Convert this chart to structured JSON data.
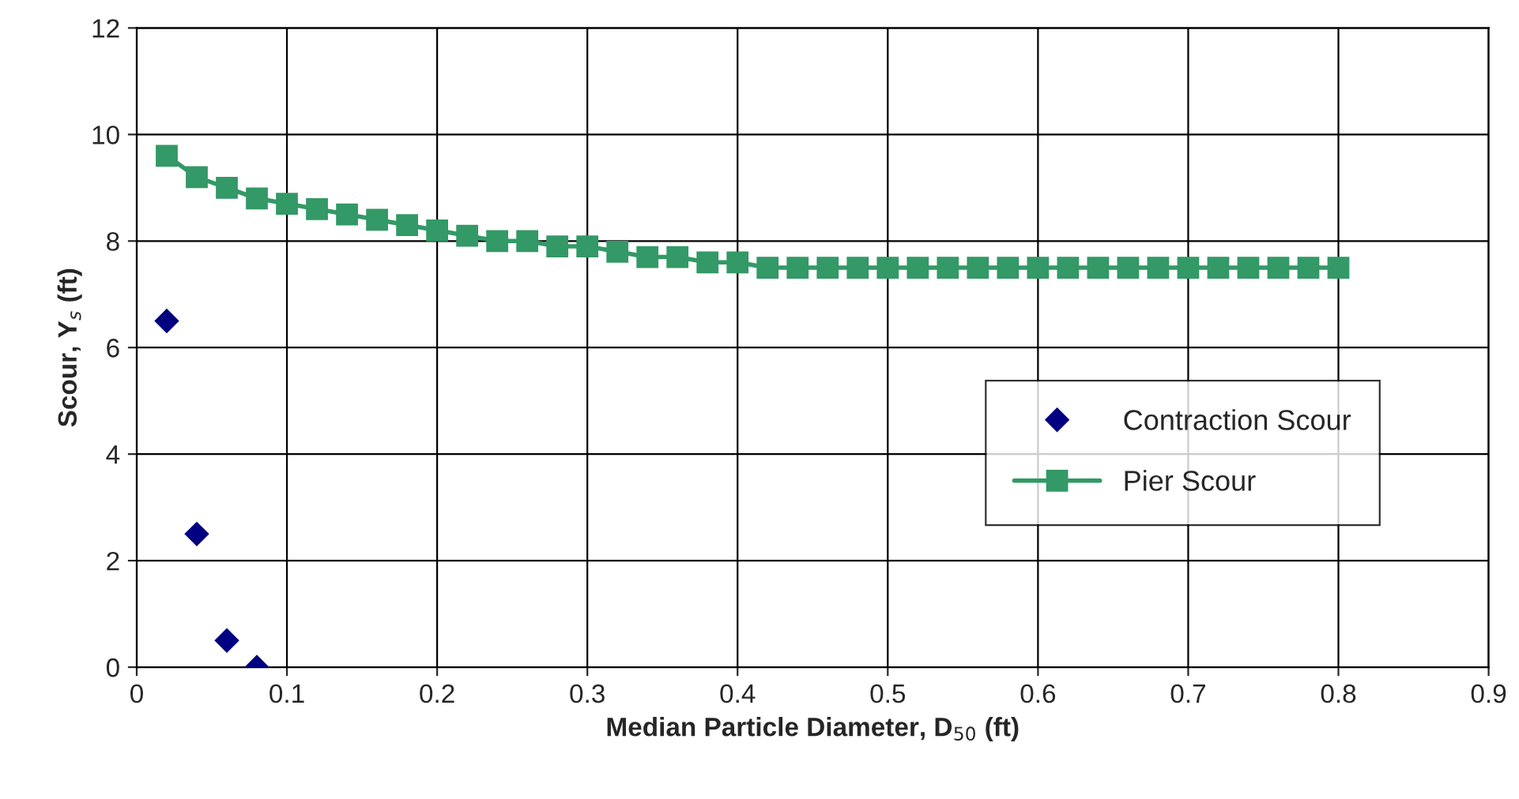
{
  "chart_data": {
    "type": "line",
    "xlabel": "Median Particle Diameter, D$_{50}$ (ft)",
    "ylabel": "Scour, Y$_{s}$ (ft)",
    "xlim": [
      0,
      0.9
    ],
    "xticks": [
      0,
      0.1,
      0.2,
      0.3,
      0.4,
      0.5,
      0.6,
      0.7,
      0.8,
      0.9
    ],
    "ylim": [
      0,
      12
    ],
    "yticks": [
      0,
      2,
      4,
      6,
      8,
      10,
      12
    ],
    "grid": true,
    "legend": "right",
    "series": [
      {
        "name": "Contraction Scour",
        "type": "scatter",
        "marker": "diamond",
        "color": "#000080",
        "x": [
          0.02,
          0.04,
          0.06,
          0.08
        ],
        "values": [
          6.5,
          2.5,
          0.5,
          0
        ]
      },
      {
        "name": "Pier Scour",
        "marker": "square",
        "line_style": "solid",
        "color": "#339966",
        "x": [
          0.02,
          0.04,
          0.06,
          0.08,
          0.1,
          0.12,
          0.14,
          0.16,
          0.18,
          0.2,
          0.22,
          0.24,
          0.26,
          0.28,
          0.3,
          0.32,
          0.34,
          0.36,
          0.38,
          0.4,
          0.42,
          0.44,
          0.46,
          0.48,
          0.5,
          0.52,
          0.54,
          0.56,
          0.58,
          0.6,
          0.62,
          0.64,
          0.66,
          0.68,
          0.7,
          0.72,
          0.74,
          0.76,
          0.78,
          0.8
        ],
        "values": [
          9.6,
          9.2,
          9.0,
          8.8,
          8.7,
          8.6,
          8.5,
          8.4,
          8.3,
          8.2,
          8.1,
          8.0,
          8.0,
          7.9,
          7.9,
          7.8,
          7.7,
          7.7,
          7.6,
          7.6,
          7.5,
          7.5,
          7.5,
          7.5,
          7.5,
          7.5,
          7.5,
          7.5,
          7.5,
          7.5,
          7.5,
          7.5,
          7.5,
          7.5,
          7.5,
          7.5,
          7.5,
          7.5,
          7.5,
          7.5
        ]
      }
    ]
  }
}
